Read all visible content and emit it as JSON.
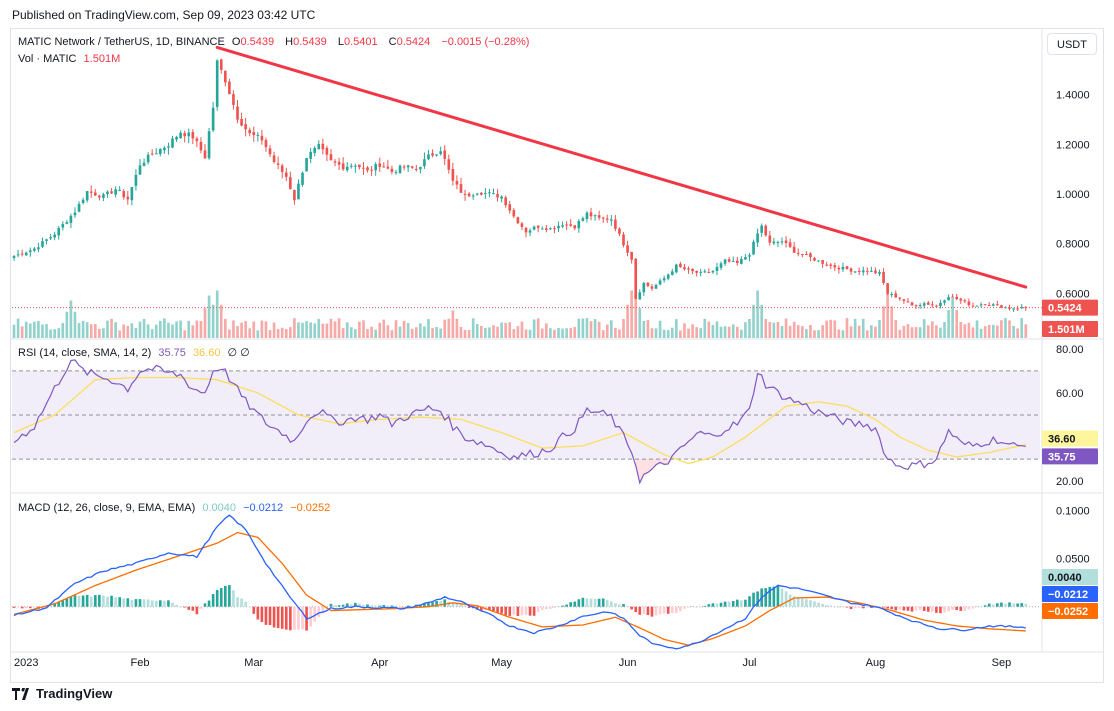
{
  "header": {
    "published": "Published on TradingView.com, Sep 09, 2023 03:42 UTC"
  },
  "legend": {
    "symbol": "MATIC Network / TetherUS, 1D, BINANCE",
    "o_label": "O",
    "o_value": "0.5439",
    "h_label": "H",
    "h_value": "0.5439",
    "l_label": "L",
    "l_value": "0.5401",
    "c_label": "C",
    "c_value": "0.5424",
    "change": "−0.0015 (−0.28%)",
    "vol_label": "Vol · MATIC",
    "vol_value": "1.501M",
    "rsi_label": "RSI (14, close, SMA, 14, 2)",
    "rsi_value": "35.75",
    "rsi_ma_value": "36.60",
    "rsi_extra": "∅ ∅",
    "macd_label": "MACD (12, 26, close, 9, EMA, EMA)",
    "macd_hist": "0.0040",
    "macd_line": "−0.0212",
    "macd_signal": "−0.0252"
  },
  "currency_button": "USDT",
  "footer": {
    "brand": "TradingView"
  },
  "chart_data": [
    {
      "type": "candlestick",
      "title": "MATIC Network / TetherUS, 1D, BINANCE",
      "ylim": [
        0.42,
        1.62
      ],
      "yticks": [
        0.6,
        0.8,
        1.0,
        1.2,
        1.4
      ],
      "ytick_labels": [
        "0.6000",
        "0.8000",
        "1.0000",
        "1.2000",
        "1.4000"
      ],
      "last_price": 0.5424,
      "last_price_label": "0.5424",
      "xlabels": [
        {
          "day": 0,
          "label": "2023"
        },
        {
          "day": 31,
          "label": "Feb"
        },
        {
          "day": 59,
          "label": "Mar"
        },
        {
          "day": 90,
          "label": "Apr"
        },
        {
          "day": 120,
          "label": "May"
        },
        {
          "day": 151,
          "label": "Jun"
        },
        {
          "day": 181,
          "label": "Jul"
        },
        {
          "day": 212,
          "label": "Aug"
        },
        {
          "day": 243,
          "label": "Sep"
        }
      ],
      "close_path": [
        [
          0,
          0.75
        ],
        [
          5,
          0.78
        ],
        [
          10,
          0.84
        ],
        [
          15,
          0.93
        ],
        [
          18,
          1.01
        ],
        [
          22,
          0.99
        ],
        [
          25,
          1.02
        ],
        [
          28,
          0.98
        ],
        [
          31,
          1.12
        ],
        [
          34,
          1.16
        ],
        [
          38,
          1.2
        ],
        [
          41,
          1.25
        ],
        [
          44,
          1.23
        ],
        [
          47,
          1.15
        ],
        [
          49,
          1.35
        ],
        [
          50,
          1.53
        ],
        [
          52,
          1.46
        ],
        [
          55,
          1.31
        ],
        [
          58,
          1.24
        ],
        [
          61,
          1.22
        ],
        [
          64,
          1.13
        ],
        [
          67,
          1.07
        ],
        [
          69,
          0.98
        ],
        [
          72,
          1.15
        ],
        [
          75,
          1.19
        ],
        [
          78,
          1.13
        ],
        [
          81,
          1.11
        ],
        [
          84,
          1.12
        ],
        [
          87,
          1.09
        ],
        [
          90,
          1.12
        ],
        [
          93,
          1.09
        ],
        [
          96,
          1.11
        ],
        [
          99,
          1.1
        ],
        [
          102,
          1.15
        ],
        [
          105,
          1.18
        ],
        [
          108,
          1.05
        ],
        [
          111,
          0.99
        ],
        [
          114,
          1.01
        ],
        [
          117,
          1.0
        ],
        [
          120,
          0.99
        ],
        [
          123,
          0.91
        ],
        [
          126,
          0.85
        ],
        [
          129,
          0.87
        ],
        [
          132,
          0.86
        ],
        [
          135,
          0.88
        ],
        [
          138,
          0.87
        ],
        [
          141,
          0.92
        ],
        [
          144,
          0.9
        ],
        [
          147,
          0.9
        ],
        [
          150,
          0.8
        ],
        [
          152,
          0.74
        ],
        [
          153,
          0.58
        ],
        [
          155,
          0.64
        ],
        [
          157,
          0.62
        ],
        [
          160,
          0.66
        ],
        [
          163,
          0.71
        ],
        [
          166,
          0.69
        ],
        [
          169,
          0.68
        ],
        [
          172,
          0.69
        ],
        [
          175,
          0.73
        ],
        [
          178,
          0.72
        ],
        [
          181,
          0.76
        ],
        [
          183,
          0.84
        ],
        [
          184,
          0.87
        ],
        [
          186,
          0.8
        ],
        [
          189,
          0.81
        ],
        [
          192,
          0.77
        ],
        [
          195,
          0.75
        ],
        [
          198,
          0.73
        ],
        [
          201,
          0.71
        ],
        [
          204,
          0.7
        ],
        [
          207,
          0.69
        ],
        [
          210,
          0.69
        ],
        [
          213,
          0.68
        ],
        [
          215,
          0.6
        ],
        [
          218,
          0.58
        ],
        [
          221,
          0.55
        ],
        [
          224,
          0.56
        ],
        [
          227,
          0.55
        ],
        [
          230,
          0.59
        ],
        [
          233,
          0.57
        ],
        [
          236,
          0.55
        ],
        [
          239,
          0.56
        ],
        [
          242,
          0.55
        ],
        [
          245,
          0.54
        ],
        [
          249,
          0.5424
        ]
      ],
      "trendline": [
        [
          50,
          1.59
        ],
        [
          249,
          0.625
        ]
      ]
    },
    {
      "type": "bar",
      "title": "Vol · MATIC",
      "last_value_label": "1.501M",
      "peaks": [
        {
          "day": 14,
          "rel": 0.75
        },
        {
          "day": 48,
          "rel": 0.85
        },
        {
          "day": 50,
          "rel": 0.95
        },
        {
          "day": 108,
          "rel": 0.55
        },
        {
          "day": 152,
          "rel": 0.95
        },
        {
          "day": 153,
          "rel": 0.85
        },
        {
          "day": 183,
          "rel": 0.95
        },
        {
          "day": 215,
          "rel": 0.9
        },
        {
          "day": 231,
          "rel": 0.8
        }
      ]
    },
    {
      "type": "line",
      "title": "RSI (14, close, SMA, 14, 2)",
      "ylim": [
        16,
        84
      ],
      "yticks": [
        20,
        40,
        60,
        80
      ],
      "ytick_labels": [
        "20.00",
        "",
        "60.00",
        "80.00"
      ],
      "bands": {
        "upper": 70,
        "middle": 50,
        "lower": 30
      },
      "rsi_path": [
        [
          0,
          38
        ],
        [
          5,
          45
        ],
        [
          10,
          62
        ],
        [
          14,
          75
        ],
        [
          17,
          70
        ],
        [
          20,
          68
        ],
        [
          24,
          66
        ],
        [
          28,
          62
        ],
        [
          31,
          70
        ],
        [
          34,
          71
        ],
        [
          38,
          69
        ],
        [
          41,
          68
        ],
        [
          44,
          62
        ],
        [
          47,
          60
        ],
        [
          49,
          70
        ],
        [
          51,
          72
        ],
        [
          54,
          64
        ],
        [
          57,
          56
        ],
        [
          60,
          50
        ],
        [
          63,
          45
        ],
        [
          66,
          42
        ],
        [
          69,
          38
        ],
        [
          72,
          48
        ],
        [
          75,
          52
        ],
        [
          78,
          48
        ],
        [
          81,
          47
        ],
        [
          84,
          49
        ],
        [
          87,
          48
        ],
        [
          90,
          50
        ],
        [
          93,
          46
        ],
        [
          96,
          49
        ],
        [
          99,
          51
        ],
        [
          102,
          53
        ],
        [
          105,
          52
        ],
        [
          108,
          45
        ],
        [
          111,
          40
        ],
        [
          114,
          38
        ],
        [
          117,
          36
        ],
        [
          120,
          33
        ],
        [
          123,
          31
        ],
        [
          126,
          32
        ],
        [
          129,
          33
        ],
        [
          132,
          35
        ],
        [
          135,
          40
        ],
        [
          138,
          44
        ],
        [
          141,
          52
        ],
        [
          144,
          51
        ],
        [
          147,
          49
        ],
        [
          150,
          40
        ],
        [
          152,
          34
        ],
        [
          154,
          21
        ],
        [
          157,
          25
        ],
        [
          160,
          28
        ],
        [
          163,
          32
        ],
        [
          166,
          38
        ],
        [
          169,
          42
        ],
        [
          172,
          40
        ],
        [
          175,
          44
        ],
        [
          178,
          46
        ],
        [
          181,
          52
        ],
        [
          183,
          70
        ],
        [
          185,
          64
        ],
        [
          188,
          60
        ],
        [
          191,
          57
        ],
        [
          194,
          55
        ],
        [
          197,
          52
        ],
        [
          200,
          50
        ],
        [
          203,
          48
        ],
        [
          206,
          46
        ],
        [
          209,
          46
        ],
        [
          212,
          44
        ],
        [
          215,
          30
        ],
        [
          218,
          27
        ],
        [
          221,
          27
        ],
        [
          224,
          28
        ],
        [
          227,
          30
        ],
        [
          230,
          43
        ],
        [
          233,
          37
        ],
        [
          236,
          36
        ],
        [
          239,
          38
        ],
        [
          242,
          39
        ],
        [
          245,
          36
        ],
        [
          249,
          35.75
        ]
      ],
      "rsi_ma_path": [
        [
          0,
          42
        ],
        [
          10,
          50
        ],
        [
          20,
          66
        ],
        [
          30,
          67
        ],
        [
          40,
          67
        ],
        [
          50,
          66
        ],
        [
          60,
          60
        ],
        [
          70,
          50
        ],
        [
          80,
          46
        ],
        [
          90,
          48
        ],
        [
          100,
          49
        ],
        [
          110,
          48
        ],
        [
          120,
          42
        ],
        [
          130,
          35
        ],
        [
          140,
          36
        ],
        [
          150,
          42
        ],
        [
          160,
          32
        ],
        [
          166,
          28
        ],
        [
          172,
          31
        ],
        [
          180,
          40
        ],
        [
          190,
          54
        ],
        [
          198,
          56
        ],
        [
          205,
          54
        ],
        [
          212,
          48
        ],
        [
          218,
          40
        ],
        [
          225,
          34
        ],
        [
          232,
          31
        ],
        [
          240,
          33
        ],
        [
          249,
          36.6
        ]
      ],
      "last_rsi_label": "35.75",
      "last_ma_label": "36.60"
    },
    {
      "type": "line",
      "title": "MACD (12, 26, close, 9, EMA, EMA)",
      "ylim": [
        -0.045,
        0.115
      ],
      "yticks": [
        0.05,
        0.1
      ],
      "ytick_labels": [
        "0.0500",
        "0.1000"
      ],
      "macd_path": [
        [
          0,
          -0.009
        ],
        [
          8,
          -0.001
        ],
        [
          15,
          0.024
        ],
        [
          22,
          0.037
        ],
        [
          30,
          0.045
        ],
        [
          38,
          0.056
        ],
        [
          45,
          0.052
        ],
        [
          50,
          0.083
        ],
        [
          53,
          0.095
        ],
        [
          57,
          0.08
        ],
        [
          62,
          0.045
        ],
        [
          67,
          0.015
        ],
        [
          72,
          -0.012
        ],
        [
          78,
          -0.002
        ],
        [
          84,
          0.0
        ],
        [
          90,
          -0.001
        ],
        [
          96,
          -0.002
        ],
        [
          102,
          0.004
        ],
        [
          106,
          0.01
        ],
        [
          110,
          0.005
        ],
        [
          114,
          -0.003
        ],
        [
          118,
          -0.01
        ],
        [
          122,
          -0.02
        ],
        [
          128,
          -0.027
        ],
        [
          134,
          -0.02
        ],
        [
          140,
          -0.01
        ],
        [
          146,
          -0.005
        ],
        [
          150,
          -0.012
        ],
        [
          154,
          -0.03
        ],
        [
          158,
          -0.04
        ],
        [
          163,
          -0.043
        ],
        [
          168,
          -0.038
        ],
        [
          174,
          -0.025
        ],
        [
          180,
          -0.012
        ],
        [
          184,
          0.01
        ],
        [
          188,
          0.022
        ],
        [
          194,
          0.018
        ],
        [
          200,
          0.011
        ],
        [
          206,
          0.004
        ],
        [
          212,
          0.0
        ],
        [
          217,
          -0.008
        ],
        [
          222,
          -0.016
        ],
        [
          228,
          -0.023
        ],
        [
          234,
          -0.024
        ],
        [
          240,
          -0.02
        ],
        [
          249,
          -0.0212
        ]
      ],
      "signal_path": [
        [
          0,
          -0.008
        ],
        [
          10,
          0.003
        ],
        [
          20,
          0.022
        ],
        [
          30,
          0.038
        ],
        [
          40,
          0.052
        ],
        [
          50,
          0.066
        ],
        [
          55,
          0.077
        ],
        [
          60,
          0.072
        ],
        [
          66,
          0.045
        ],
        [
          72,
          0.012
        ],
        [
          78,
          -0.004
        ],
        [
          86,
          -0.003
        ],
        [
          94,
          -0.002
        ],
        [
          102,
          0.0
        ],
        [
          108,
          0.004
        ],
        [
          114,
          0.001
        ],
        [
          122,
          -0.011
        ],
        [
          130,
          -0.021
        ],
        [
          140,
          -0.019
        ],
        [
          148,
          -0.011
        ],
        [
          154,
          -0.022
        ],
        [
          160,
          -0.034
        ],
        [
          166,
          -0.04
        ],
        [
          172,
          -0.033
        ],
        [
          180,
          -0.02
        ],
        [
          186,
          -0.004
        ],
        [
          192,
          0.009
        ],
        [
          200,
          0.01
        ],
        [
          208,
          0.004
        ],
        [
          216,
          -0.004
        ],
        [
          224,
          -0.014
        ],
        [
          232,
          -0.02
        ],
        [
          240,
          -0.023
        ],
        [
          249,
          -0.0252
        ]
      ],
      "last_hist_label": "0.0040",
      "last_macd_label": "−0.0212",
      "last_signal_label": "−0.0252"
    }
  ],
  "colors": {
    "up": "#26a69a",
    "down": "#ef5350",
    "trend": "#f23645",
    "rsi": "#7e57c2",
    "rsi_ma": "#fddd5c",
    "rsi_band": "rgba(126,87,194,0.10)",
    "macd": "#2962ff",
    "signal": "#ff6d00",
    "hist_up": "#26a69a",
    "hist_down": "#ef5350",
    "hist_up_light": "#b2dfdb",
    "hist_down_light": "#ffcdd2"
  }
}
